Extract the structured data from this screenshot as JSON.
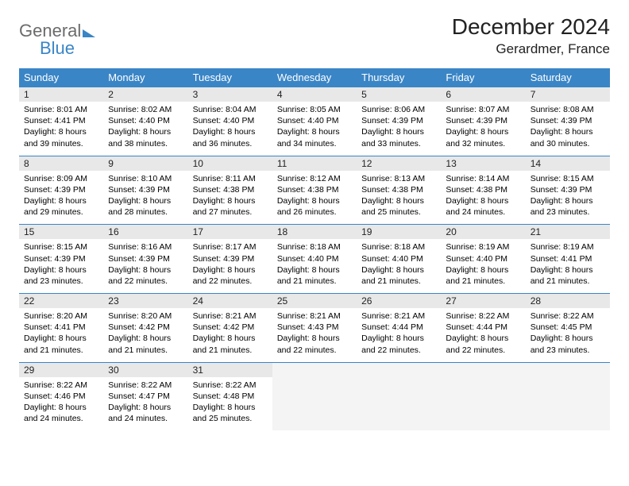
{
  "brand": {
    "word1": "General",
    "word2": "Blue"
  },
  "title": "December 2024",
  "location": "Gerardmer, France",
  "colors": {
    "header_bg": "#3a85c6",
    "header_text": "#ffffff",
    "daynum_bg": "#e8e8e8",
    "border": "#3a85c6",
    "logo_gray": "#6b6b6b",
    "logo_blue": "#3a85c6"
  },
  "weekdays": [
    "Sunday",
    "Monday",
    "Tuesday",
    "Wednesday",
    "Thursday",
    "Friday",
    "Saturday"
  ],
  "weeks": [
    [
      {
        "n": "1",
        "sr": "Sunrise: 8:01 AM",
        "ss": "Sunset: 4:41 PM",
        "dl": "Daylight: 8 hours and 39 minutes."
      },
      {
        "n": "2",
        "sr": "Sunrise: 8:02 AM",
        "ss": "Sunset: 4:40 PM",
        "dl": "Daylight: 8 hours and 38 minutes."
      },
      {
        "n": "3",
        "sr": "Sunrise: 8:04 AM",
        "ss": "Sunset: 4:40 PM",
        "dl": "Daylight: 8 hours and 36 minutes."
      },
      {
        "n": "4",
        "sr": "Sunrise: 8:05 AM",
        "ss": "Sunset: 4:40 PM",
        "dl": "Daylight: 8 hours and 34 minutes."
      },
      {
        "n": "5",
        "sr": "Sunrise: 8:06 AM",
        "ss": "Sunset: 4:39 PM",
        "dl": "Daylight: 8 hours and 33 minutes."
      },
      {
        "n": "6",
        "sr": "Sunrise: 8:07 AM",
        "ss": "Sunset: 4:39 PM",
        "dl": "Daylight: 8 hours and 32 minutes."
      },
      {
        "n": "7",
        "sr": "Sunrise: 8:08 AM",
        "ss": "Sunset: 4:39 PM",
        "dl": "Daylight: 8 hours and 30 minutes."
      }
    ],
    [
      {
        "n": "8",
        "sr": "Sunrise: 8:09 AM",
        "ss": "Sunset: 4:39 PM",
        "dl": "Daylight: 8 hours and 29 minutes."
      },
      {
        "n": "9",
        "sr": "Sunrise: 8:10 AM",
        "ss": "Sunset: 4:39 PM",
        "dl": "Daylight: 8 hours and 28 minutes."
      },
      {
        "n": "10",
        "sr": "Sunrise: 8:11 AM",
        "ss": "Sunset: 4:38 PM",
        "dl": "Daylight: 8 hours and 27 minutes."
      },
      {
        "n": "11",
        "sr": "Sunrise: 8:12 AM",
        "ss": "Sunset: 4:38 PM",
        "dl": "Daylight: 8 hours and 26 minutes."
      },
      {
        "n": "12",
        "sr": "Sunrise: 8:13 AM",
        "ss": "Sunset: 4:38 PM",
        "dl": "Daylight: 8 hours and 25 minutes."
      },
      {
        "n": "13",
        "sr": "Sunrise: 8:14 AM",
        "ss": "Sunset: 4:38 PM",
        "dl": "Daylight: 8 hours and 24 minutes."
      },
      {
        "n": "14",
        "sr": "Sunrise: 8:15 AM",
        "ss": "Sunset: 4:39 PM",
        "dl": "Daylight: 8 hours and 23 minutes."
      }
    ],
    [
      {
        "n": "15",
        "sr": "Sunrise: 8:15 AM",
        "ss": "Sunset: 4:39 PM",
        "dl": "Daylight: 8 hours and 23 minutes."
      },
      {
        "n": "16",
        "sr": "Sunrise: 8:16 AM",
        "ss": "Sunset: 4:39 PM",
        "dl": "Daylight: 8 hours and 22 minutes."
      },
      {
        "n": "17",
        "sr": "Sunrise: 8:17 AM",
        "ss": "Sunset: 4:39 PM",
        "dl": "Daylight: 8 hours and 22 minutes."
      },
      {
        "n": "18",
        "sr": "Sunrise: 8:18 AM",
        "ss": "Sunset: 4:40 PM",
        "dl": "Daylight: 8 hours and 21 minutes."
      },
      {
        "n": "19",
        "sr": "Sunrise: 8:18 AM",
        "ss": "Sunset: 4:40 PM",
        "dl": "Daylight: 8 hours and 21 minutes."
      },
      {
        "n": "20",
        "sr": "Sunrise: 8:19 AM",
        "ss": "Sunset: 4:40 PM",
        "dl": "Daylight: 8 hours and 21 minutes."
      },
      {
        "n": "21",
        "sr": "Sunrise: 8:19 AM",
        "ss": "Sunset: 4:41 PM",
        "dl": "Daylight: 8 hours and 21 minutes."
      }
    ],
    [
      {
        "n": "22",
        "sr": "Sunrise: 8:20 AM",
        "ss": "Sunset: 4:41 PM",
        "dl": "Daylight: 8 hours and 21 minutes."
      },
      {
        "n": "23",
        "sr": "Sunrise: 8:20 AM",
        "ss": "Sunset: 4:42 PM",
        "dl": "Daylight: 8 hours and 21 minutes."
      },
      {
        "n": "24",
        "sr": "Sunrise: 8:21 AM",
        "ss": "Sunset: 4:42 PM",
        "dl": "Daylight: 8 hours and 21 minutes."
      },
      {
        "n": "25",
        "sr": "Sunrise: 8:21 AM",
        "ss": "Sunset: 4:43 PM",
        "dl": "Daylight: 8 hours and 22 minutes."
      },
      {
        "n": "26",
        "sr": "Sunrise: 8:21 AM",
        "ss": "Sunset: 4:44 PM",
        "dl": "Daylight: 8 hours and 22 minutes."
      },
      {
        "n": "27",
        "sr": "Sunrise: 8:22 AM",
        "ss": "Sunset: 4:44 PM",
        "dl": "Daylight: 8 hours and 22 minutes."
      },
      {
        "n": "28",
        "sr": "Sunrise: 8:22 AM",
        "ss": "Sunset: 4:45 PM",
        "dl": "Daylight: 8 hours and 23 minutes."
      }
    ],
    [
      {
        "n": "29",
        "sr": "Sunrise: 8:22 AM",
        "ss": "Sunset: 4:46 PM",
        "dl": "Daylight: 8 hours and 24 minutes."
      },
      {
        "n": "30",
        "sr": "Sunrise: 8:22 AM",
        "ss": "Sunset: 4:47 PM",
        "dl": "Daylight: 8 hours and 24 minutes."
      },
      {
        "n": "31",
        "sr": "Sunrise: 8:22 AM",
        "ss": "Sunset: 4:48 PM",
        "dl": "Daylight: 8 hours and 25 minutes."
      },
      null,
      null,
      null,
      null
    ]
  ]
}
